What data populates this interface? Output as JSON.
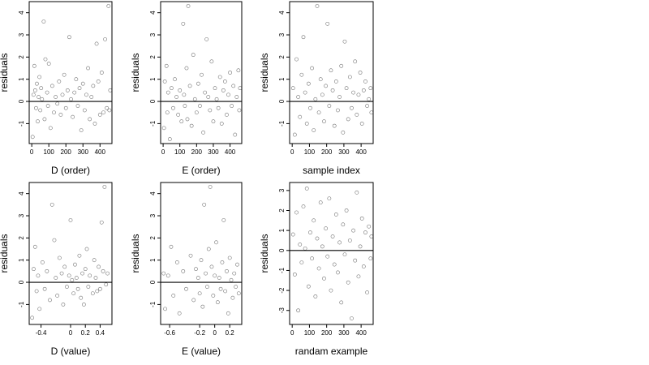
{
  "chart_data": [
    {
      "id": "D_order",
      "type": "scatter",
      "xlabel": "D (order)",
      "ylabel": "residuals",
      "xlim": [
        -15,
        470
      ],
      "ylim": [
        -1.9,
        4.5
      ],
      "xticks": [
        0,
        100,
        200,
        300,
        400
      ],
      "yticks": [
        -1,
        0,
        1,
        2,
        3,
        4
      ],
      "hline": 0,
      "points": [
        [
          5,
          -1.6
        ],
        [
          10,
          0.3
        ],
        [
          15,
          1.6
        ],
        [
          20,
          0.5
        ],
        [
          25,
          -0.3
        ],
        [
          30,
          0.8
        ],
        [
          35,
          -0.9
        ],
        [
          40,
          0.2
        ],
        [
          45,
          1.1
        ],
        [
          50,
          -0.4
        ],
        [
          55,
          0.6
        ],
        [
          60,
          0.1
        ],
        [
          70,
          3.6
        ],
        [
          75,
          -0.8
        ],
        [
          80,
          1.9
        ],
        [
          90,
          0.4
        ],
        [
          95,
          -0.2
        ],
        [
          100,
          1.7
        ],
        [
          110,
          -1.2
        ],
        [
          120,
          0.7
        ],
        [
          130,
          -0.5
        ],
        [
          140,
          0.2
        ],
        [
          150,
          -0.1
        ],
        [
          160,
          0.9
        ],
        [
          170,
          -0.6
        ],
        [
          180,
          0.3
        ],
        [
          190,
          1.2
        ],
        [
          200,
          -0.3
        ],
        [
          210,
          0.5
        ],
        [
          220,
          2.9
        ],
        [
          230,
          0.1
        ],
        [
          240,
          -0.7
        ],
        [
          250,
          0.4
        ],
        [
          260,
          1.0
        ],
        [
          270,
          -0.2
        ],
        [
          280,
          0.6
        ],
        [
          290,
          -1.3
        ],
        [
          300,
          0.8
        ],
        [
          310,
          -0.4
        ],
        [
          320,
          0.3
        ],
        [
          330,
          1.5
        ],
        [
          340,
          -0.8
        ],
        [
          350,
          0.2
        ],
        [
          360,
          0.7
        ],
        [
          370,
          -1.0
        ],
        [
          380,
          2.6
        ],
        [
          390,
          0.9
        ],
        [
          400,
          -0.6
        ],
        [
          410,
          1.3
        ],
        [
          420,
          -0.5
        ],
        [
          430,
          2.8
        ],
        [
          440,
          -0.3
        ],
        [
          450,
          4.3
        ],
        [
          455,
          -0.4
        ],
        [
          460,
          0.5
        ]
      ]
    },
    {
      "id": "E_order",
      "type": "scatter",
      "xlabel": "E (order)",
      "ylabel": "residuals",
      "xlim": [
        -15,
        470
      ],
      "ylim": [
        -1.9,
        4.5
      ],
      "xticks": [
        0,
        100,
        200,
        300,
        400
      ],
      "yticks": [
        -1,
        0,
        1,
        2,
        3,
        4
      ],
      "hline": 0,
      "points": [
        [
          5,
          -1.2
        ],
        [
          10,
          0.9
        ],
        [
          20,
          1.6
        ],
        [
          25,
          -0.5
        ],
        [
          30,
          0.4
        ],
        [
          40,
          -1.7
        ],
        [
          50,
          0.6
        ],
        [
          60,
          -0.3
        ],
        [
          70,
          1.0
        ],
        [
          80,
          0.2
        ],
        [
          90,
          -0.6
        ],
        [
          100,
          0.5
        ],
        [
          110,
          -0.9
        ],
        [
          120,
          3.5
        ],
        [
          125,
          0.3
        ],
        [
          130,
          -0.2
        ],
        [
          140,
          1.5
        ],
        [
          145,
          -0.8
        ],
        [
          150,
          4.3
        ],
        [
          160,
          0.7
        ],
        [
          170,
          -1.1
        ],
        [
          180,
          2.1
        ],
        [
          190,
          0.1
        ],
        [
          200,
          -0.5
        ],
        [
          210,
          0.8
        ],
        [
          220,
          -0.2
        ],
        [
          230,
          1.2
        ],
        [
          240,
          -1.4
        ],
        [
          250,
          0.4
        ],
        [
          260,
          2.8
        ],
        [
          270,
          0.2
        ],
        [
          280,
          -0.4
        ],
        [
          290,
          1.8
        ],
        [
          300,
          -0.9
        ],
        [
          310,
          0.6
        ],
        [
          320,
          0.1
        ],
        [
          330,
          -0.3
        ],
        [
          340,
          1.1
        ],
        [
          350,
          -1.0
        ],
        [
          360,
          0.5
        ],
        [
          370,
          0.9
        ],
        [
          380,
          -0.6
        ],
        [
          390,
          0.3
        ],
        [
          400,
          1.3
        ],
        [
          410,
          -0.2
        ],
        [
          420,
          0.7
        ],
        [
          430,
          -1.5
        ],
        [
          440,
          0.2
        ],
        [
          450,
          1.4
        ],
        [
          455,
          -0.4
        ],
        [
          460,
          0.6
        ]
      ]
    },
    {
      "id": "sample_index",
      "type": "scatter",
      "xlabel": "sample index",
      "ylabel": "residuals",
      "xlim": [
        -15,
        470
      ],
      "ylim": [
        -1.9,
        4.5
      ],
      "xticks": [
        0,
        100,
        200,
        300,
        400
      ],
      "yticks": [
        -1,
        0,
        1,
        2,
        3,
        4
      ],
      "hline": 0,
      "points": [
        [
          5,
          0.6
        ],
        [
          15,
          -1.5
        ],
        [
          25,
          1.9
        ],
        [
          35,
          0.2
        ],
        [
          45,
          -0.7
        ],
        [
          55,
          1.2
        ],
        [
          65,
          2.9
        ],
        [
          75,
          0.4
        ],
        [
          85,
          -1.0
        ],
        [
          95,
          0.8
        ],
        [
          105,
          -0.3
        ],
        [
          115,
          1.5
        ],
        [
          125,
          -1.3
        ],
        [
          135,
          0.1
        ],
        [
          145,
          4.3
        ],
        [
          155,
          -0.5
        ],
        [
          165,
          1.0
        ],
        [
          175,
          0.3
        ],
        [
          185,
          -0.9
        ],
        [
          195,
          0.7
        ],
        [
          205,
          3.5
        ],
        [
          215,
          -0.2
        ],
        [
          225,
          1.4
        ],
        [
          235,
          0.5
        ],
        [
          245,
          -1.1
        ],
        [
          255,
          0.9
        ],
        [
          265,
          -0.4
        ],
        [
          275,
          0.2
        ],
        [
          285,
          1.6
        ],
        [
          295,
          -1.4
        ],
        [
          305,
          2.7
        ],
        [
          315,
          0.6
        ],
        [
          325,
          -0.8
        ],
        [
          335,
          1.1
        ],
        [
          345,
          -0.3
        ],
        [
          355,
          0.4
        ],
        [
          365,
          1.8
        ],
        [
          375,
          -0.6
        ],
        [
          385,
          0.3
        ],
        [
          395,
          1.3
        ],
        [
          405,
          -1.0
        ],
        [
          415,
          0.5
        ],
        [
          425,
          0.9
        ],
        [
          435,
          -0.2
        ],
        [
          445,
          0.1
        ],
        [
          455,
          0.6
        ],
        [
          460,
          -0.5
        ]
      ]
    },
    {
      "id": "D_value",
      "type": "scatter",
      "xlabel": "D (value)",
      "ylabel": "residuals",
      "xlim": [
        -0.56,
        0.56
      ],
      "ylim": [
        -1.9,
        4.5
      ],
      "xticks": [
        -0.4,
        0.0,
        0.2,
        0.4
      ],
      "yticks": [
        -1,
        0,
        1,
        2,
        3,
        4
      ],
      "hline": 0,
      "points": [
        [
          -0.52,
          -1.6
        ],
        [
          -0.5,
          0.6
        ],
        [
          -0.48,
          1.6
        ],
        [
          -0.46,
          -0.4
        ],
        [
          -0.44,
          0.3
        ],
        [
          -0.42,
          -1.2
        ],
        [
          -0.38,
          0.9
        ],
        [
          -0.35,
          -0.3
        ],
        [
          -0.32,
          0.5
        ],
        [
          -0.28,
          -0.8
        ],
        [
          -0.25,
          3.5
        ],
        [
          -0.22,
          1.9
        ],
        [
          -0.2,
          0.2
        ],
        [
          -0.18,
          -0.6
        ],
        [
          -0.15,
          1.1
        ],
        [
          -0.12,
          0.4
        ],
        [
          -0.1,
          -1.0
        ],
        [
          -0.08,
          0.7
        ],
        [
          -0.05,
          -0.2
        ],
        [
          -0.02,
          0.3
        ],
        [
          0.0,
          2.8
        ],
        [
          0.02,
          0.1
        ],
        [
          0.04,
          -0.5
        ],
        [
          0.06,
          0.8
        ],
        [
          0.08,
          0.2
        ],
        [
          0.1,
          -0.3
        ],
        [
          0.12,
          1.2
        ],
        [
          0.14,
          -0.7
        ],
        [
          0.16,
          0.4
        ],
        [
          0.18,
          -1.0
        ],
        [
          0.2,
          0.6
        ],
        [
          0.22,
          1.5
        ],
        [
          0.24,
          -0.2
        ],
        [
          0.26,
          0.3
        ],
        [
          0.3,
          -0.5
        ],
        [
          0.32,
          1.0
        ],
        [
          0.34,
          0.2
        ],
        [
          0.36,
          -0.4
        ],
        [
          0.38,
          0.7
        ],
        [
          0.4,
          -0.3
        ],
        [
          0.42,
          2.7
        ],
        [
          0.44,
          0.5
        ],
        [
          0.46,
          4.3
        ],
        [
          0.48,
          -0.1
        ],
        [
          0.5,
          0.4
        ]
      ]
    },
    {
      "id": "E_value",
      "type": "scatter",
      "xlabel": "E (value)",
      "ylabel": "residuals",
      "xlim": [
        -0.72,
        0.36
      ],
      "ylim": [
        -1.9,
        4.5
      ],
      "xticks": [
        -0.6,
        -0.2,
        0.0,
        0.2
      ],
      "yticks": [
        -1,
        0,
        1,
        2,
        3,
        4
      ],
      "hline": 0,
      "points": [
        [
          -0.68,
          0.4
        ],
        [
          -0.66,
          -1.2
        ],
        [
          -0.62,
          0.3
        ],
        [
          -0.58,
          1.6
        ],
        [
          -0.55,
          -0.6
        ],
        [
          -0.5,
          0.9
        ],
        [
          -0.47,
          -1.4
        ],
        [
          -0.42,
          0.5
        ],
        [
          -0.38,
          -0.3
        ],
        [
          -0.32,
          1.2
        ],
        [
          -0.28,
          -0.8
        ],
        [
          -0.25,
          0.6
        ],
        [
          -0.22,
          0.2
        ],
        [
          -0.2,
          -0.5
        ],
        [
          -0.18,
          1.0
        ],
        [
          -0.16,
          -1.1
        ],
        [
          -0.14,
          3.5
        ],
        [
          -0.12,
          0.4
        ],
        [
          -0.1,
          -0.2
        ],
        [
          -0.08,
          1.5
        ],
        [
          -0.06,
          4.3
        ],
        [
          -0.04,
          0.7
        ],
        [
          -0.02,
          -0.6
        ],
        [
          0.0,
          0.3
        ],
        [
          0.02,
          1.8
        ],
        [
          0.04,
          -0.9
        ],
        [
          0.06,
          0.2
        ],
        [
          0.08,
          -0.3
        ],
        [
          0.1,
          0.9
        ],
        [
          0.12,
          2.8
        ],
        [
          0.14,
          -0.4
        ],
        [
          0.16,
          0.5
        ],
        [
          0.18,
          -1.4
        ],
        [
          0.2,
          1.1
        ],
        [
          0.22,
          0.1
        ],
        [
          0.24,
          -0.7
        ],
        [
          0.26,
          0.4
        ],
        [
          0.28,
          -0.2
        ],
        [
          0.3,
          0.8
        ],
        [
          0.32,
          -0.5
        ]
      ]
    },
    {
      "id": "random_example",
      "type": "scatter",
      "xlabel": "randam example",
      "ylabel": "residuals",
      "xlim": [
        -15,
        470
      ],
      "ylim": [
        -3.7,
        3.4
      ],
      "xticks": [
        0,
        100,
        200,
        300,
        400
      ],
      "yticks": [
        -3,
        -2,
        -1,
        0,
        1,
        2,
        3
      ],
      "hline": 0,
      "points": [
        [
          5,
          0.8
        ],
        [
          15,
          -1.2
        ],
        [
          25,
          1.9
        ],
        [
          35,
          -3.0
        ],
        [
          45,
          0.3
        ],
        [
          55,
          -0.6
        ],
        [
          65,
          2.2
        ],
        [
          75,
          0.1
        ],
        [
          85,
          3.1
        ],
        [
          95,
          -1.8
        ],
        [
          105,
          0.9
        ],
        [
          115,
          -0.4
        ],
        [
          125,
          1.5
        ],
        [
          135,
          -2.3
        ],
        [
          145,
          0.6
        ],
        [
          155,
          -0.9
        ],
        [
          165,
          2.4
        ],
        [
          175,
          0.2
        ],
        [
          185,
          -1.4
        ],
        [
          195,
          1.1
        ],
        [
          205,
          -0.3
        ],
        [
          215,
          2.6
        ],
        [
          225,
          -2.0
        ],
        [
          235,
          0.7
        ],
        [
          245,
          -0.7
        ],
        [
          255,
          1.8
        ],
        [
          265,
          -1.1
        ],
        [
          275,
          0.4
        ],
        [
          285,
          -2.6
        ],
        [
          295,
          1.3
        ],
        [
          305,
          -0.2
        ],
        [
          315,
          2.0
        ],
        [
          325,
          -1.6
        ],
        [
          335,
          0.5
        ],
        [
          345,
          -3.4
        ],
        [
          355,
          1.0
        ],
        [
          365,
          -0.5
        ],
        [
          375,
          2.9
        ],
        [
          385,
          -1.3
        ],
        [
          395,
          0.2
        ],
        [
          405,
          1.6
        ],
        [
          415,
          -0.8
        ],
        [
          425,
          0.9
        ],
        [
          435,
          -2.1
        ],
        [
          445,
          1.2
        ],
        [
          455,
          -0.4
        ],
        [
          460,
          0.7
        ]
      ]
    }
  ]
}
